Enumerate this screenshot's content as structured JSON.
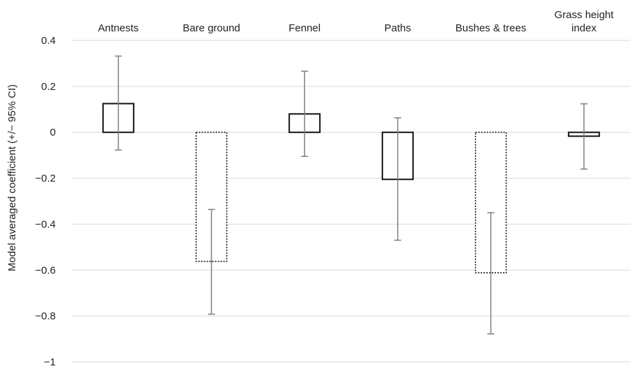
{
  "chart_data": {
    "type": "bar",
    "title": "",
    "xlabel": "",
    "ylabel": "Model averaged coefficient (+/− 95% CI)",
    "ylim": [
      -1,
      0.4
    ],
    "yticks": [
      0.4,
      0.2,
      0,
      -0.2,
      -0.4,
      -0.6,
      -0.8,
      -1
    ],
    "ytick_labels": [
      "0.4",
      "0.2",
      "0",
      "−0.2",
      "−0.4",
      "−0.6",
      "−0.8",
      "−1"
    ],
    "grid": true,
    "categories": [
      {
        "label": [
          "Antnests"
        ],
        "value": 0.125,
        "ci_low": -0.077,
        "ci_high": 0.332,
        "style": "solid"
      },
      {
        "label": [
          "Bare ground"
        ],
        "value": -0.562,
        "ci_low": -0.792,
        "ci_high": -0.336,
        "style": "dotted"
      },
      {
        "label": [
          "Fennel"
        ],
        "value": 0.08,
        "ci_low": -0.105,
        "ci_high": 0.266,
        "style": "solid"
      },
      {
        "label": [
          "Paths"
        ],
        "value": -0.205,
        "ci_low": -0.47,
        "ci_high": 0.063,
        "style": "solid"
      },
      {
        "label": [
          "Bushes & trees"
        ],
        "value": -0.612,
        "ci_low": -0.878,
        "ci_high": -0.35,
        "style": "dotted"
      },
      {
        "label": [
          "Grass height",
          "index"
        ],
        "value": -0.017,
        "ci_low": -0.16,
        "ci_high": 0.124,
        "style": "solid"
      }
    ]
  }
}
